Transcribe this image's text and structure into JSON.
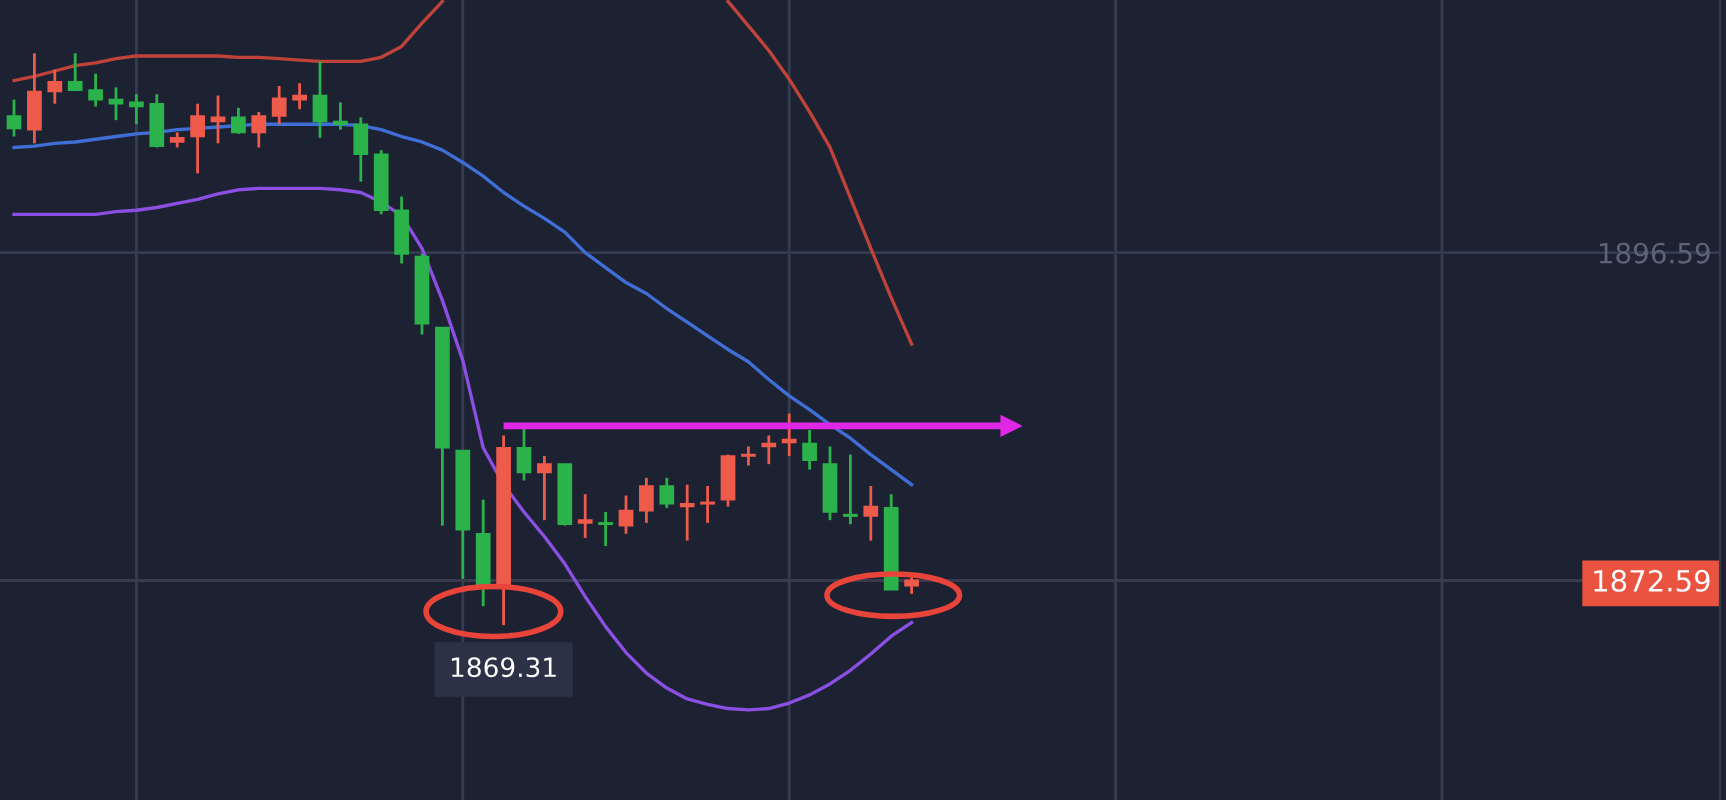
{
  "chart_data": {
    "type": "candlestick",
    "categories": [
      null,
      null,
      null,
      null,
      null,
      null,
      null,
      null,
      null,
      null,
      null,
      null,
      null,
      null,
      null,
      null,
      null,
      null,
      null,
      null,
      null,
      null,
      null,
      null,
      null,
      null,
      null,
      null,
      null,
      null,
      null,
      null,
      null,
      null,
      null,
      null,
      null,
      null,
      null,
      null,
      null,
      null,
      null,
      null,
      null
    ],
    "ohlc": [
      [
        1906.6,
        1907.8,
        1905.1,
        1905.7
      ],
      [
        1905.6,
        1911.2,
        1904.6,
        1908.4
      ],
      [
        1908.4,
        1910.0,
        1907.5,
        1909.1
      ],
      [
        1909.1,
        1911.2,
        1908.5,
        1908.5
      ],
      [
        1908.5,
        1909.7,
        1907.3,
        1907.8
      ],
      [
        1907.8,
        1908.7,
        1906.3,
        1907.5
      ],
      [
        1907.6,
        1908.2,
        1906.0,
        1907.3
      ],
      [
        1907.5,
        1908.2,
        1904.3,
        1904.4
      ],
      [
        1904.7,
        1905.4,
        1904.3,
        1905.0
      ],
      [
        1905.1,
        1907.5,
        1902.4,
        1906.6
      ],
      [
        1906.2,
        1908.1,
        1904.6,
        1906.5
      ],
      [
        1906.5,
        1907.2,
        1905.3,
        1905.4
      ],
      [
        1905.4,
        1906.9,
        1904.3,
        1906.6
      ],
      [
        1906.6,
        1908.8,
        1906.0,
        1907.9
      ],
      [
        1907.8,
        1909.0,
        1907.1,
        1908.1
      ],
      [
        1908.1,
        1910.6,
        1905.0,
        1906.2
      ],
      [
        1906.2,
        1907.6,
        1905.6,
        1906.0
      ],
      [
        1906.0,
        1906.5,
        1901.8,
        1903.8
      ],
      [
        1903.8,
        1904.1,
        1899.4,
        1899.7
      ],
      [
        1899.7,
        1900.7,
        1895.8,
        1896.5
      ],
      [
        1896.3,
        1896.5,
        1890.6,
        1891.4
      ],
      [
        1891.1,
        1891.1,
        1876.6,
        1882.3
      ],
      [
        1882.1,
        1882.1,
        1872.7,
        1876.3
      ],
      [
        1876.0,
        1878.5,
        1870.7,
        1872.2
      ],
      [
        1872.2,
        1883.2,
        1869.31,
        1882.3
      ],
      [
        1882.3,
        1883.9,
        1879.9,
        1880.5
      ],
      [
        1880.5,
        1881.7,
        1877.0,
        1881.1
      ],
      [
        1881.1,
        1881.1,
        1876.6,
        1876.7
      ],
      [
        1876.8,
        1878.9,
        1875.7,
        1877.0
      ],
      [
        1876.8,
        1877.6,
        1875.1,
        1876.7
      ],
      [
        1876.6,
        1878.8,
        1876.0,
        1877.7
      ],
      [
        1877.7,
        1880.1,
        1876.8,
        1879.5
      ],
      [
        1879.5,
        1880.1,
        1877.9,
        1878.2
      ],
      [
        1878.0,
        1879.6,
        1875.5,
        1878.2
      ],
      [
        1878.2,
        1879.5,
        1876.8,
        1878.3
      ],
      [
        1878.5,
        1881.8,
        1878.0,
        1881.7
      ],
      [
        1881.7,
        1882.4,
        1881.0,
        1881.8
      ],
      [
        1882.4,
        1883.2,
        1881.1,
        1882.6
      ],
      [
        1882.7,
        1884.8,
        1881.7,
        1882.9
      ],
      [
        1882.6,
        1883.6,
        1880.7,
        1881.4
      ],
      [
        1881.1,
        1882.4,
        1877.0,
        1877.6
      ],
      [
        1877.4,
        1881.8,
        1876.7,
        1877.3
      ],
      [
        1877.3,
        1879.5,
        1875.5,
        1878.0
      ],
      [
        1877.9,
        1878.9,
        1871.9,
        1871.9
      ],
      [
        1872.2,
        1873.0,
        1871.6,
        1872.59
      ]
    ],
    "colors": [
      "#2bb24a",
      "#ef5b4b",
      "#ef5b4b",
      "#2bb24a",
      "#2bb24a",
      "#2bb24a",
      "#2bb24a",
      "#2bb24a",
      "#ef5b4b",
      "#ef5b4b",
      "#ef5b4b",
      "#2bb24a",
      "#ef5b4b",
      "#ef5b4b",
      "#ef5b4b",
      "#2bb24a",
      "#2bb24a",
      "#2bb24a",
      "#2bb24a",
      "#2bb24a",
      "#2bb24a",
      "#2bb24a",
      "#2bb24a",
      "#2bb24a",
      "#ef5b4b",
      "#2bb24a",
      "#ef5b4b",
      "#2bb24a",
      "#ef5b4b",
      "#2bb24a",
      "#ef5b4b",
      "#ef5b4b",
      "#2bb24a",
      "#ef5b4b",
      "#ef5b4b",
      "#ef5b4b",
      "#ef5b4b",
      "#ef5b4b",
      "#ef5b4b",
      "#2bb24a",
      "#2bb24a",
      "#2bb24a",
      "#ef5b4b",
      "#2bb24a",
      "#ef5b4b"
    ],
    "series": [
      {
        "type": "line",
        "color": "#c0433a",
        "values": [
          1909.2,
          1909.5,
          1909.9,
          1910.3,
          1910.5,
          1910.8,
          1911.0,
          1911.0,
          1911.0,
          1911.0,
          1911.0,
          1910.9,
          1910.9,
          1910.8,
          1910.7,
          1910.6,
          1910.6,
          1910.6,
          1910.9,
          1911.7,
          1913.4,
          1915.0,
          null,
          null,
          null,
          null,
          null,
          null,
          null,
          null,
          null,
          null,
          null,
          null,
          null,
          1915.0,
          1913.2,
          1911.4,
          1909.3,
          1906.9,
          1904.3,
          1900.6,
          1896.9,
          1893.3,
          1889.9
        ]
      },
      {
        "type": "line",
        "color": "#3f6fd6",
        "values": [
          1904.3,
          1904.4,
          1904.6,
          1904.7,
          1904.9,
          1905.1,
          1905.3,
          1905.4,
          1905.6,
          1905.7,
          1905.8,
          1905.9,
          1906.0,
          1906.0,
          1906.0,
          1906.0,
          1906.0,
          1905.9,
          1905.6,
          1905.1,
          1904.7,
          1904.1,
          1903.2,
          1902.2,
          1901.0,
          1900.0,
          1899.1,
          1898.1,
          1896.6,
          1895.5,
          1894.4,
          1893.6,
          1892.5,
          1891.5,
          1890.5,
          1889.5,
          1888.6,
          1887.3,
          1886.1,
          1885.1,
          1884.0,
          1883.0,
          1881.8,
          1880.7,
          1879.6
        ]
      },
      {
        "type": "line",
        "color": "#8b4fe3",
        "values": [
          1899.4,
          1899.4,
          1899.4,
          1899.4,
          1899.4,
          1899.6,
          1899.7,
          1899.9,
          1900.2,
          1900.5,
          1900.9,
          1901.2,
          1901.3,
          1901.3,
          1901.3,
          1901.3,
          1901.2,
          1901.0,
          1900.3,
          1899.3,
          1896.9,
          1893.1,
          1888.7,
          1882.3,
          1879.6,
          1877.6,
          1875.8,
          1873.8,
          1871.4,
          1869.2,
          1867.3,
          1865.8,
          1864.7,
          1863.9,
          1863.5,
          1863.2,
          1863.1,
          1863.2,
          1863.6,
          1864.2,
          1865.0,
          1866.0,
          1867.2,
          1868.5,
          1869.5
        ]
      }
    ],
    "ylim": [
      1856.5,
      1915.1
    ],
    "yticks": [
      1896.59,
      1872.59
    ],
    "tick_labels": "y",
    "grid": true,
    "ref_lines": [
      {
        "axis": "y",
        "value": 1872.59,
        "color": "#e9533f"
      },
      {
        "axis": "y",
        "value": 1883.9,
        "color": "#e026e6"
      }
    ],
    "annotations": [
      {
        "text": "1869.31",
        "y": 1869.31
      }
    ]
  }
}
